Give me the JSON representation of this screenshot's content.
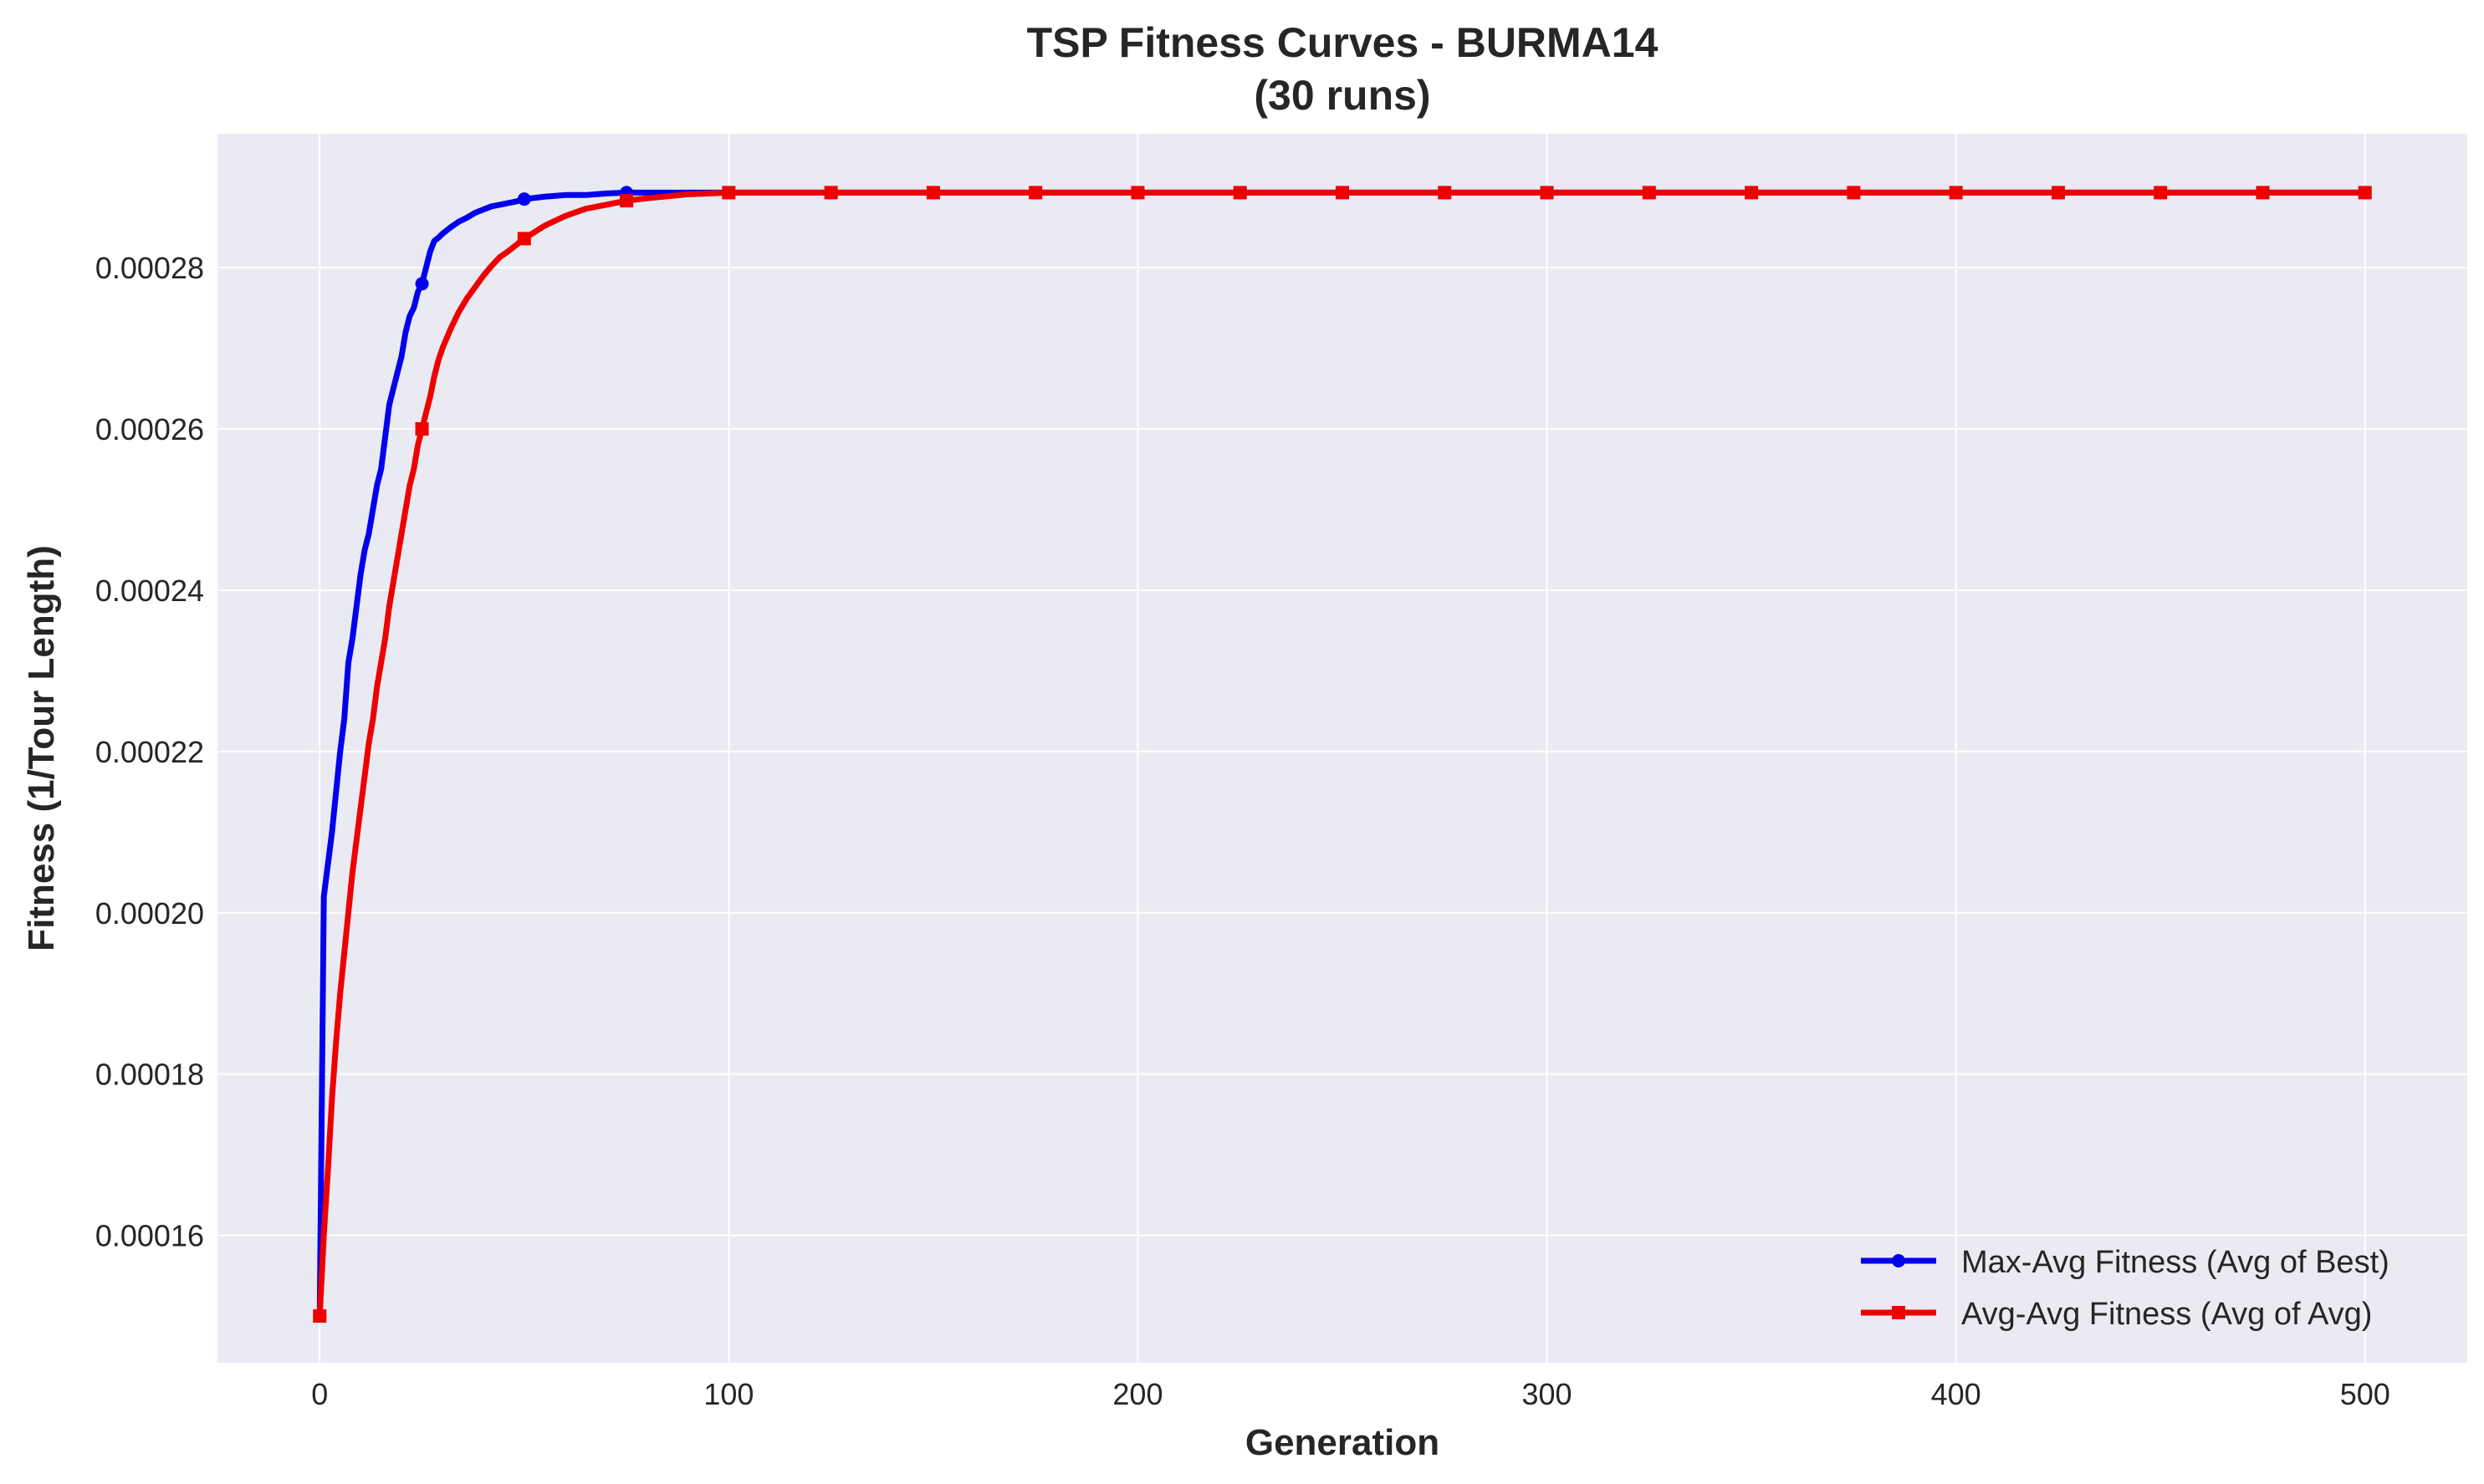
{
  "chart_data": {
    "type": "line",
    "title": "TSP Fitness Curves - BURMA14",
    "subtitle": "(30 runs)",
    "xlabel": "Generation",
    "ylabel": "Fitness (1/Tour Length)",
    "xlim": [
      -25,
      525
    ],
    "ylim": [
      0.0001442,
      0.0002966
    ],
    "xticks": [
      0,
      100,
      200,
      300,
      400,
      500
    ],
    "xtick_labels": [
      "0",
      "100",
      "200",
      "300",
      "400",
      "500"
    ],
    "yticks": [
      0.00016,
      0.00018,
      0.0002,
      0.00022,
      0.00024,
      0.00026,
      0.00028
    ],
    "ytick_labels": [
      "0.00016",
      "0.00018",
      "0.00020",
      "0.00022",
      "0.00024",
      "0.00026",
      "0.00028"
    ],
    "grid": true,
    "legend_position": "bottom-right",
    "series": [
      {
        "name": "Max-Avg Fitness (Avg of Best)",
        "color": "#0000ee",
        "marker": "circle",
        "x": [
          0,
          1,
          2,
          3,
          4,
          5,
          6,
          7,
          8,
          9,
          10,
          11,
          12,
          13,
          14,
          15,
          16,
          17,
          18,
          19,
          20,
          21,
          22,
          23,
          24,
          25,
          26,
          27,
          28,
          29,
          30,
          32,
          34,
          36,
          38,
          40,
          42,
          44,
          46,
          48,
          50,
          55,
          60,
          65,
          70,
          75,
          80,
          90,
          100,
          125,
          150,
          175,
          200,
          225,
          250,
          275,
          300,
          325,
          350,
          375,
          400,
          425,
          450,
          475,
          500
        ],
        "y": [
          0.00015,
          0.000202,
          0.000206,
          0.00021,
          0.000215,
          0.00022,
          0.000224,
          0.000231,
          0.000234,
          0.000238,
          0.000242,
          0.000245,
          0.000247,
          0.00025,
          0.000253,
          0.000255,
          0.000259,
          0.000263,
          0.000265,
          0.000267,
          0.000269,
          0.000272,
          0.000274,
          0.000275,
          0.000277,
          0.000278,
          0.00028,
          0.000282,
          0.0002833,
          0.0002837,
          0.0002842,
          0.000285,
          0.0002857,
          0.0002862,
          0.0002868,
          0.0002872,
          0.0002876,
          0.0002878,
          0.000288,
          0.0002882,
          0.0002885,
          0.0002888,
          0.000289,
          0.000289,
          0.0002892,
          0.0002893,
          0.0002893,
          0.0002893,
          0.0002893,
          0.0002893,
          0.0002893,
          0.0002893,
          0.0002893,
          0.0002893,
          0.0002893,
          0.0002893,
          0.0002893,
          0.0002893,
          0.0002893,
          0.0002893,
          0.0002893,
          0.0002893,
          0.0002893,
          0.0002893,
          0.0002893
        ],
        "marker_x": [
          0,
          25,
          50,
          75
        ]
      },
      {
        "name": "Avg-Avg Fitness (Avg of Avg)",
        "color": "#ee0000",
        "marker": "square",
        "x": [
          0,
          1,
          2,
          3,
          4,
          5,
          6,
          7,
          8,
          9,
          10,
          11,
          12,
          13,
          14,
          15,
          16,
          17,
          18,
          19,
          20,
          21,
          22,
          23,
          24,
          25,
          26,
          27,
          28,
          29,
          30,
          32,
          34,
          36,
          38,
          40,
          42,
          44,
          46,
          48,
          50,
          55,
          60,
          65,
          70,
          75,
          80,
          90,
          100,
          125,
          150,
          175,
          200,
          225,
          250,
          275,
          300,
          325,
          350,
          375,
          400,
          425,
          450,
          475,
          500
        ],
        "y": [
          0.00015,
          0.00016,
          0.000168,
          0.000177,
          0.000184,
          0.00019,
          0.000195,
          0.0002,
          0.000205,
          0.000209,
          0.000213,
          0.000217,
          0.000221,
          0.000224,
          0.000228,
          0.000231,
          0.000234,
          0.000238,
          0.000241,
          0.000244,
          0.000247,
          0.00025,
          0.000253,
          0.000255,
          0.000258,
          0.00026,
          0.000262,
          0.000264,
          0.0002665,
          0.0002685,
          0.00027,
          0.0002724,
          0.0002745,
          0.0002762,
          0.0002776,
          0.000279,
          0.0002802,
          0.0002813,
          0.000282,
          0.0002828,
          0.0002836,
          0.0002852,
          0.0002864,
          0.0002873,
          0.0002878,
          0.0002883,
          0.0002886,
          0.0002891,
          0.0002893,
          0.0002893,
          0.0002893,
          0.0002893,
          0.0002893,
          0.0002893,
          0.0002893,
          0.0002893,
          0.0002893,
          0.0002893,
          0.0002893,
          0.0002893,
          0.0002893,
          0.0002893,
          0.0002893,
          0.0002893,
          0.0002893
        ],
        "marker_x": [
          0,
          25,
          50,
          75,
          100,
          125,
          150,
          175,
          200,
          225,
          250,
          275,
          300,
          325,
          350,
          375,
          400,
          425,
          450,
          475,
          500
        ]
      }
    ]
  }
}
